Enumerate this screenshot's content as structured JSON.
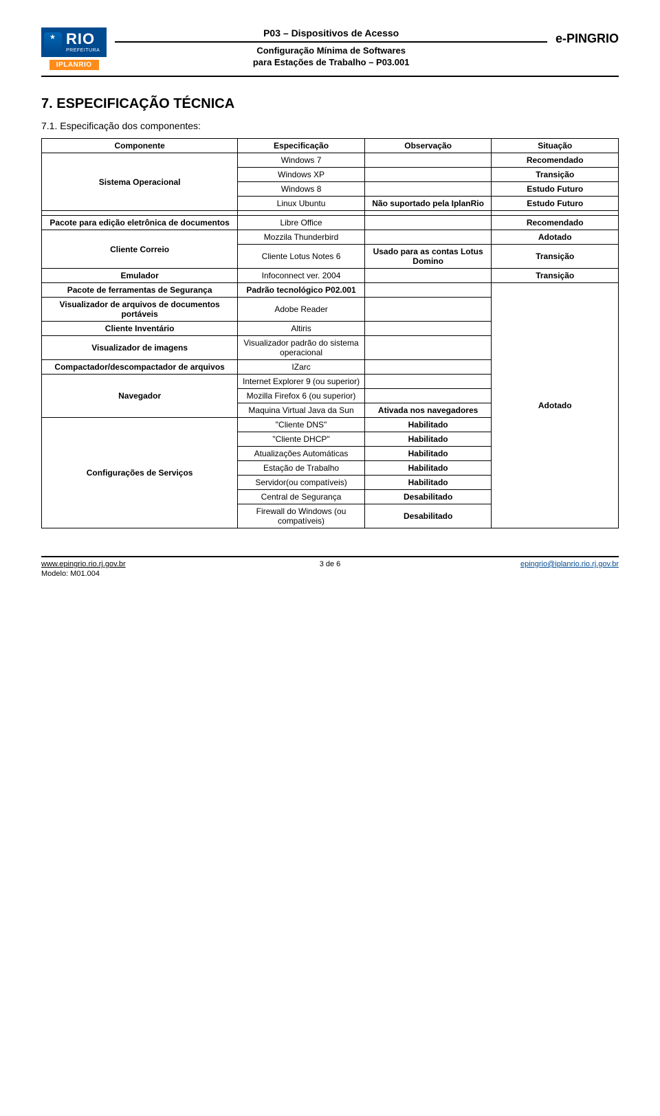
{
  "header": {
    "logo_rio": "RIO",
    "logo_sub": "PREFEITURA",
    "iplanrio": "IPLANRIO",
    "top_line": "P03 – Dispositivos de Acesso",
    "sub_line1": "Configuração Mínima de Softwares",
    "sub_line2": "para Estações de Trabalho – P03.001",
    "right_brand": "e-PINGRIO"
  },
  "section_title": "7. ESPECIFICAÇÃO TÉCNICA",
  "subsection": "7.1.   Especificação dos componentes:",
  "table": {
    "head": {
      "c1": "Componente",
      "c2": "Especificação",
      "c3": "Observação",
      "c4": "Situação"
    },
    "sistema_operacional": "Sistema Operacional",
    "pacote_edicao": "Pacote para edição eletrônica de documentos",
    "cliente_correio": "Cliente Correio",
    "emulador": "Emulador",
    "pacote_seguranca": "Pacote de ferramentas de Segurança",
    "visual_pdf": "Visualizador de arquivos de documentos portáveis",
    "cliente_inventario": "Cliente Inventário",
    "visual_img": "Visualizador de imagens",
    "compactador": "Compactador/descompactador de arquivos",
    "navegador": "Navegador",
    "config_servicos": "Configurações de Serviços",
    "win7": "Windows 7",
    "winxp": "Windows XP",
    "win8": "Windows 8",
    "linux": "Linux Ubuntu",
    "linux_obs": "Não suportado pela IplanRio",
    "libre": "Libre Office",
    "mozzila": "Mozzila Thunderbird",
    "lotus": "Cliente Lotus Notes 6",
    "lotus_obs": "Usado para as contas Lotus Domino",
    "infoconnect": "Infoconnect ver. 2004",
    "padrao_seg": "Padrão tecnológico P02.001",
    "adobe": "Adobe Reader",
    "altiris": "Altiris",
    "viewer": "Visualizador padrão do sistema operacional",
    "izarc": "IZarc",
    "ie9": "Internet Explorer 9 (ou superior)",
    "ff6": "Mozilla Firefox 6 (ou superior)",
    "java": "Maquina Virtual Java da Sun",
    "java_obs": "Ativada nos navegadores",
    "dns": "\"Cliente DNS\"",
    "dhcp": "\"Cliente DHCP\"",
    "atualiz": "Atualizações Automáticas",
    "estacao": "Estação de Trabalho",
    "servidor": "Servidor(ou compatíveis)",
    "central": "Central de Segurança",
    "firewall": "Firewall do Windows (ou compatíveis)",
    "recomendado": "Recomendado",
    "transicao": "Transição",
    "estudo_futuro": "Estudo Futuro",
    "adotado": "Adotado",
    "habilitado": "Habilitado",
    "desabilitado": "Desabilitado"
  },
  "footer": {
    "left": "www.epingrio.rio.rj.gov.br",
    "center": "3 de 6",
    "right": "epingrio@iplanrio.rio.rj.gov.br",
    "model": "Modelo: M01.004"
  }
}
